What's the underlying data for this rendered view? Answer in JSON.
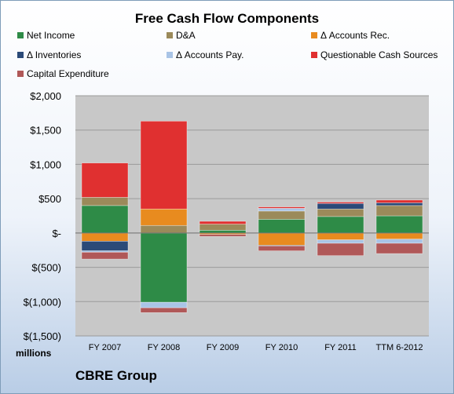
{
  "chart_data": {
    "type": "bar",
    "stacked": true,
    "title": "Free Cash Flow Components",
    "categories": [
      "FY 2007",
      "FY 2008",
      "FY 2009",
      "FY 2010",
      "FY 2011",
      "TTM 6-2012"
    ],
    "ylim": [
      -1500,
      2000
    ],
    "yticks": [
      2000,
      1500,
      1000,
      500,
      0,
      -500,
      -1000,
      -1500
    ],
    "ytick_labels": [
      "$2,000",
      "$1,500",
      "$1,000",
      "$500",
      "$-",
      "$(500)",
      "$(1,000)",
      "$(1,500)"
    ],
    "xlabel": "",
    "ylabel": "",
    "units_label": "millions",
    "grid": true,
    "legend_position": "top",
    "series": [
      {
        "name": "Net Income",
        "color": "#2e8b47",
        "values": [
          400,
          -1010,
          40,
          200,
          240,
          250
        ]
      },
      {
        "name": "D&A",
        "color": "#9b8a5a",
        "values": [
          120,
          110,
          90,
          120,
          110,
          150
        ]
      },
      {
        "name": "Δ Accounts Rec.",
        "color": "#e88b1f",
        "values": [
          -120,
          240,
          -20,
          -180,
          -100,
          -90
        ]
      },
      {
        "name": "Δ Inventories",
        "color": "#2b4a78",
        "values": [
          -140,
          0,
          0,
          -10,
          80,
          40
        ]
      },
      {
        "name": "Δ Accounts Pay.",
        "color": "#a9c4e6",
        "values": [
          -20,
          -80,
          0,
          40,
          -50,
          -60
        ]
      },
      {
        "name": "Questionable Cash Sources",
        "color": "#e03030",
        "values": [
          500,
          1280,
          40,
          20,
          20,
          40
        ]
      },
      {
        "name": "Capital Expenditure",
        "color": "#b05858",
        "values": [
          -100,
          -70,
          -30,
          -70,
          -180,
          -150
        ]
      }
    ]
  },
  "company": "CBRE Group"
}
